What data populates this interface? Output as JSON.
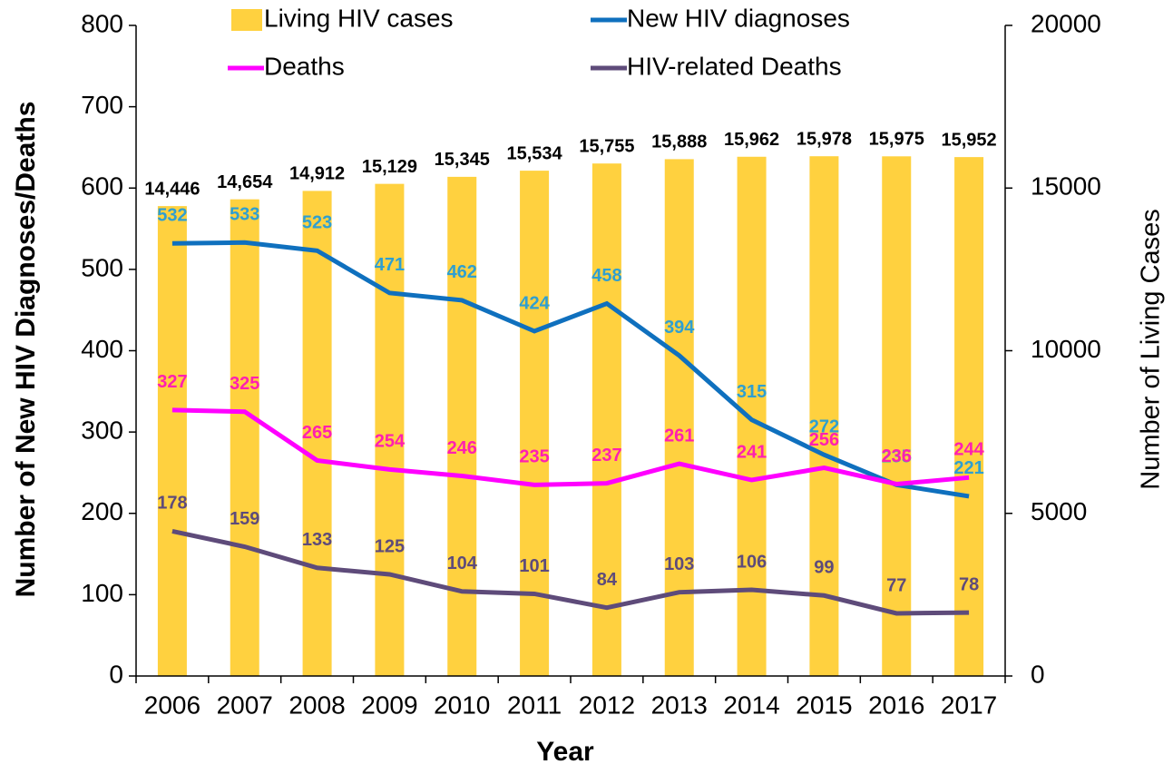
{
  "chart_data": {
    "type": "combo",
    "x_label": "Year",
    "y_label": "Number of New HIV Diagnoses/Deaths",
    "y2_label": "Number of Living Cases",
    "categories": [
      "2006",
      "2007",
      "2008",
      "2009",
      "2010",
      "2011",
      "2012",
      "2013",
      "2014",
      "2015",
      "2016",
      "2017"
    ],
    "ylim": [
      0,
      800
    ],
    "yticks": [
      0,
      100,
      200,
      300,
      400,
      500,
      600,
      700,
      800
    ],
    "y2lim": [
      0,
      20000
    ],
    "y2ticks": [
      0,
      5000,
      10000,
      15000,
      20000
    ],
    "series": [
      {
        "name": "Living HIV cases",
        "type": "bar",
        "axis": "y2",
        "color": "#FFD13F",
        "label_color": "#000000",
        "values": [
          14446,
          14654,
          14912,
          15129,
          15345,
          15534,
          15755,
          15888,
          15962,
          15978,
          15975,
          15952
        ],
        "value_labels": [
          "14,446",
          "14,654",
          "14,912",
          "15,129",
          "15,345",
          "15,534",
          "15,755",
          "15,888",
          "15,962",
          "15,978",
          "15,975",
          "15,952"
        ]
      },
      {
        "name": "New HIV diagnoses",
        "type": "line",
        "color": "#0F70BE",
        "label_color": "#2F9FD0",
        "values": [
          532,
          533,
          523,
          471,
          462,
          424,
          458,
          394,
          315,
          272,
          235,
          221
        ]
      },
      {
        "name": "Deaths",
        "type": "line",
        "color": "#FF00FF",
        "label_color": "#FF1FB0",
        "values": [
          327,
          325,
          265,
          254,
          246,
          235,
          237,
          261,
          241,
          256,
          236,
          244
        ]
      },
      {
        "name": "HIV-related Deaths",
        "type": "line",
        "color": "#5E4B7A",
        "label_color": "#5E4B7A",
        "values": [
          178,
          159,
          133,
          125,
          104,
          101,
          84,
          103,
          106,
          99,
          77,
          78
        ]
      }
    ]
  }
}
